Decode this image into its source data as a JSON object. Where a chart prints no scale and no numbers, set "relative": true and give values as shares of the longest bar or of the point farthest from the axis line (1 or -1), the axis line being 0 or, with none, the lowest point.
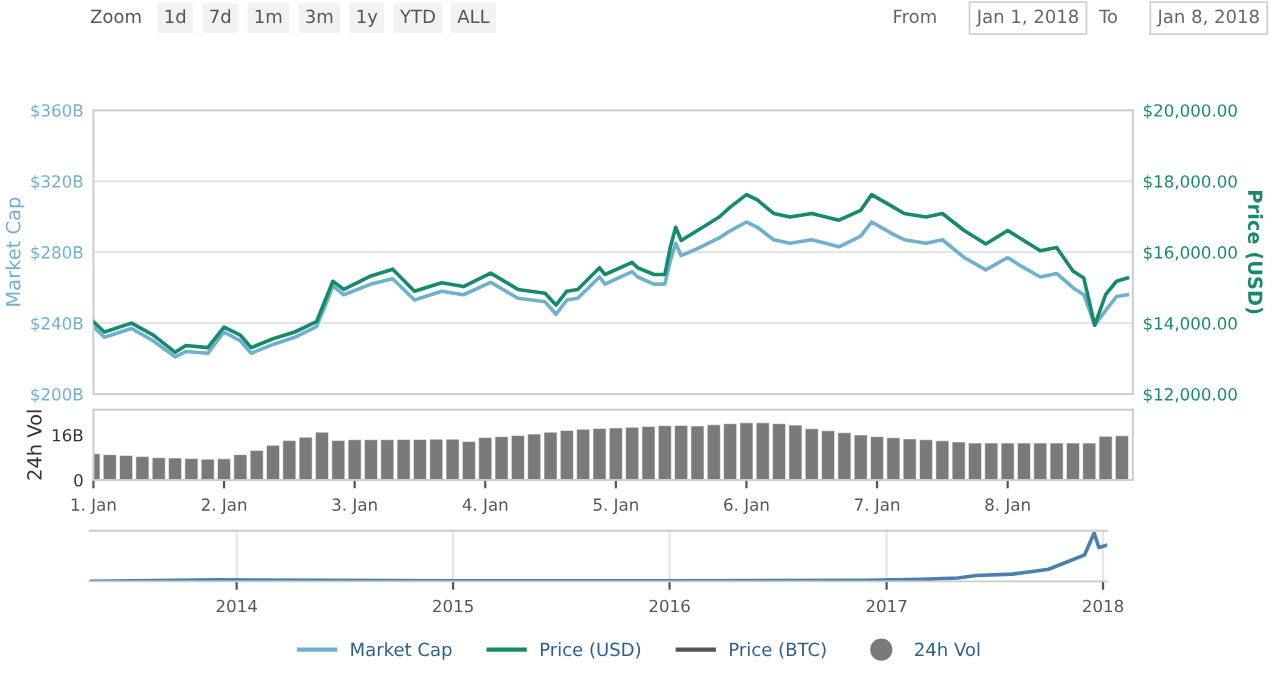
{
  "chart_data": [
    {
      "type": "line",
      "ylabel": "Market Cap",
      "y2label": "Price (USD)",
      "grid": "y",
      "legend": "bottom",
      "tick_labels": "y",
      "line_style": "solid",
      "annotations": [
        "Zoom",
        "1d",
        "7d",
        "1m",
        "3m",
        "1y",
        "YTD",
        "ALL",
        "From",
        "Jan 1, 2018",
        "To",
        "Jan 8, 2018"
      ],
      "xlim": [
        "2018-01-01T00:00",
        "2018-01-08T23:00"
      ],
      "ylim": [
        200,
        360
      ],
      "yticks": [
        {
          "value": 200,
          "label": "$200B"
        },
        {
          "value": 240,
          "label": "$240B"
        },
        {
          "value": 280,
          "label": "$280B"
        },
        {
          "value": 320,
          "label": "$320B"
        },
        {
          "value": 360,
          "label": "$360B"
        }
      ],
      "y2lim": [
        12000,
        20000
      ],
      "y2ticks": [
        {
          "value": 12000,
          "label": "$12,000.00"
        },
        {
          "value": 14000,
          "label": "$14,000.00"
        },
        {
          "value": 16000,
          "label": "$16,000.00"
        },
        {
          "value": 18000,
          "label": "$18,000.00"
        },
        {
          "value": 20000,
          "label": "$20,000.00"
        }
      ],
      "x": [
        "2018-01-01T00:00",
        "2018-01-01T02:00",
        "2018-01-01T07:00",
        "2018-01-01T11:00",
        "2018-01-01T15:00",
        "2018-01-01T17:00",
        "2018-01-01T21:00",
        "2018-01-02T00:00",
        "2018-01-02T03:00",
        "2018-01-02T05:00",
        "2018-01-02T09:00",
        "2018-01-02T13:00",
        "2018-01-02T17:00",
        "2018-01-02T19:00",
        "2018-01-02T20:00",
        "2018-01-02T22:00",
        "2018-01-03T03:00",
        "2018-01-03T07:00",
        "2018-01-03T11:00",
        "2018-01-03T16:00",
        "2018-01-03T20:00",
        "2018-01-04T01:00",
        "2018-01-04T06:00",
        "2018-01-04T11:00",
        "2018-01-04T13:00",
        "2018-01-04T15:00",
        "2018-01-04T17:00",
        "2018-01-04T21:00",
        "2018-01-04T22:00",
        "2018-01-05T03:00",
        "2018-01-05T04:00",
        "2018-01-05T07:00",
        "2018-01-05T09:00",
        "2018-01-05T10:00",
        "2018-01-05T11:00",
        "2018-01-05T12:00",
        "2018-01-05T15:00",
        "2018-01-05T19:00",
        "2018-01-05T21:00",
        "2018-01-06T00:00",
        "2018-01-06T02:00",
        "2018-01-06T05:00",
        "2018-01-06T08:00",
        "2018-01-06T12:00",
        "2018-01-06T17:00",
        "2018-01-06T21:00",
        "2018-01-06T23:00",
        "2018-01-07T03:00",
        "2018-01-07T05:00",
        "2018-01-07T09:00",
        "2018-01-07T12:00",
        "2018-01-07T16:00",
        "2018-01-07T20:00",
        "2018-01-08T00:00",
        "2018-01-08T02:00",
        "2018-01-08T06:00",
        "2018-01-08T09:00",
        "2018-01-08T12:00",
        "2018-01-08T14:00",
        "2018-01-08T16:00",
        "2018-01-08T18:00",
        "2018-01-08T20:00",
        "2018-01-08T22:00"
      ],
      "series": [
        {
          "name": "Market Cap",
          "color": "#6fb0cf",
          "values": [
            238,
            232,
            237,
            230,
            221,
            224,
            223,
            235,
            230,
            223,
            228,
            232,
            238,
            253,
            261,
            256,
            262,
            265,
            253,
            258,
            256,
            263,
            254,
            252,
            245,
            253,
            254,
            266,
            262,
            269,
            266,
            262,
            262,
            275,
            285,
            278,
            282,
            288,
            292,
            297,
            294,
            287,
            285,
            287,
            283,
            289,
            297,
            290,
            287,
            285,
            287,
            277,
            270,
            277,
            273,
            266,
            268,
            260,
            256,
            239,
            247,
            255,
            256
          ]
        },
        {
          "name": "Price (USD)",
          "color": "#178a6c",
          "axis": "y2",
          "values": [
            14040,
            13750,
            14000,
            13660,
            13180,
            13370,
            13310,
            13890,
            13660,
            13310,
            13560,
            13750,
            14040,
            14800,
            15180,
            14950,
            15330,
            15520,
            14900,
            15140,
            15030,
            15410,
            14950,
            14840,
            14510,
            14900,
            14950,
            15560,
            15370,
            15710,
            15560,
            15370,
            15370,
            16130,
            16700,
            16330,
            16610,
            16990,
            17270,
            17620,
            17470,
            17090,
            16990,
            17090,
            16900,
            17180,
            17620,
            17270,
            17090,
            16990,
            17090,
            16610,
            16230,
            16610,
            16420,
            16040,
            16130,
            15470,
            15270,
            13940,
            14800,
            15180,
            15270
          ]
        },
        {
          "name": "Price (BTC)",
          "color": "#555555",
          "axis": "y2",
          "values": [
            null,
            null,
            null,
            null,
            null,
            null,
            null,
            null,
            null,
            null,
            null,
            null,
            null,
            null,
            null,
            null,
            null,
            null,
            null,
            null,
            null,
            null,
            null,
            null,
            null,
            null,
            null,
            null,
            null,
            null,
            null,
            null,
            null,
            null,
            null,
            null,
            null,
            null,
            null,
            null,
            null,
            null,
            null,
            null,
            null,
            null,
            null,
            null,
            null,
            null,
            null,
            null,
            null,
            null,
            null,
            null,
            null,
            null,
            null,
            null,
            null,
            null,
            null
          ]
        }
      ]
    },
    {
      "type": "bar",
      "ylabel": "24h Vol",
      "xlim": [
        "2018-01-01T00:00",
        "2018-01-08T23:00"
      ],
      "xticks": [
        {
          "value": "2018-01-01",
          "label": "1. Jan"
        },
        {
          "value": "2018-01-02",
          "label": "2. Jan"
        },
        {
          "value": "2018-01-03",
          "label": "3. Jan"
        },
        {
          "value": "2018-01-04",
          "label": "4. Jan"
        },
        {
          "value": "2018-01-05",
          "label": "5. Jan"
        },
        {
          "value": "2018-01-06",
          "label": "6. Jan"
        },
        {
          "value": "2018-01-07",
          "label": "7. Jan"
        },
        {
          "value": "2018-01-08",
          "label": "8. Jan"
        }
      ],
      "ylim": [
        0,
        25
      ],
      "yticks": [
        0,
        {
          "value": 16,
          "label": "16B"
        }
      ],
      "x": [
        "2018-01-01T00:00",
        "2018-01-01T03:00",
        "2018-01-01T06:00",
        "2018-01-01T09:00",
        "2018-01-01T12:00",
        "2018-01-01T15:00",
        "2018-01-01T18:00",
        "2018-01-01T21:00",
        "2018-01-02T00:00",
        "2018-01-02T03:00",
        "2018-01-02T06:00",
        "2018-01-02T09:00",
        "2018-01-02T12:00",
        "2018-01-02T15:00",
        "2018-01-02T18:00",
        "2018-01-02T21:00",
        "2018-01-03T00:00",
        "2018-01-03T03:00",
        "2018-01-03T06:00",
        "2018-01-03T09:00",
        "2018-01-03T12:00",
        "2018-01-03T15:00",
        "2018-01-03T18:00",
        "2018-01-03T21:00",
        "2018-01-04T00:00",
        "2018-01-04T03:00",
        "2018-01-04T06:00",
        "2018-01-04T09:00",
        "2018-01-04T12:00",
        "2018-01-04T15:00",
        "2018-01-04T18:00",
        "2018-01-04T21:00",
        "2018-01-05T00:00",
        "2018-01-05T03:00",
        "2018-01-05T06:00",
        "2018-01-05T09:00",
        "2018-01-05T12:00",
        "2018-01-05T15:00",
        "2018-01-05T18:00",
        "2018-01-05T21:00",
        "2018-01-06T00:00",
        "2018-01-06T03:00",
        "2018-01-06T06:00",
        "2018-01-06T09:00",
        "2018-01-06T12:00",
        "2018-01-06T15:00",
        "2018-01-06T18:00",
        "2018-01-06T21:00",
        "2018-01-07T00:00",
        "2018-01-07T03:00",
        "2018-01-07T06:00",
        "2018-01-07T09:00",
        "2018-01-07T12:00",
        "2018-01-07T15:00",
        "2018-01-07T18:00",
        "2018-01-07T21:00",
        "2018-01-08T00:00",
        "2018-01-08T03:00",
        "2018-01-08T06:00",
        "2018-01-08T09:00",
        "2018-01-08T12:00",
        "2018-01-08T15:00",
        "2018-01-08T18:00",
        "2018-01-08T21:00"
      ],
      "series": [
        {
          "name": "24h Vol",
          "color": "#7a7a7a",
          "values": [
            9.3,
            9.0,
            8.7,
            8.3,
            7.9,
            7.8,
            7.6,
            7.4,
            7.5,
            9.0,
            10.5,
            12.3,
            14.0,
            15.2,
            17.0,
            14.0,
            14.3,
            14.3,
            14.3,
            14.4,
            14.4,
            14.5,
            14.5,
            13.7,
            15.1,
            15.4,
            15.8,
            16.3,
            17.0,
            17.6,
            18.0,
            18.3,
            18.5,
            18.7,
            19.0,
            19.3,
            19.4,
            19.2,
            19.6,
            20.0,
            20.3,
            20.3,
            20.0,
            19.5,
            18.2,
            17.5,
            16.8,
            16.0,
            15.4,
            15.0,
            14.6,
            14.3,
            13.9,
            13.5,
            13.1,
            13.1,
            13.1,
            13.1,
            13.1,
            13.1,
            13.1,
            13.1,
            15.5,
            15.7
          ]
        }
      ]
    },
    {
      "type": "line",
      "relative": true,
      "grid": "x",
      "tick_labels": "x",
      "xlim": [
        "2013-04-28",
        "2018-01-08"
      ],
      "xticks": [
        {
          "value": "2014-01-01",
          "label": "2014"
        },
        {
          "value": "2015-01-01",
          "label": "2015"
        },
        {
          "value": "2016-01-01",
          "label": "2016"
        },
        {
          "value": "2017-01-01",
          "label": "2017"
        },
        {
          "value": "2018-01-01",
          "label": "2018"
        }
      ],
      "x": [
        "2013-04-28",
        "2013-12-01",
        "2014-06-01",
        "2015-01-01",
        "2016-01-01",
        "2016-12-01",
        "2017-03-01",
        "2017-05-01",
        "2017-06-01",
        "2017-08-01",
        "2017-09-01",
        "2017-10-01",
        "2017-11-01",
        "2017-12-01",
        "2017-12-17",
        "2017-12-25",
        "2018-01-08"
      ],
      "series": [
        {
          "color": "#4a7fb0",
          "values": [
            0.0,
            0.03,
            0.02,
            0.01,
            0.01,
            0.02,
            0.04,
            0.07,
            0.12,
            0.15,
            0.2,
            0.25,
            0.4,
            0.55,
            1.0,
            0.7,
            0.75
          ]
        }
      ]
    }
  ]
}
